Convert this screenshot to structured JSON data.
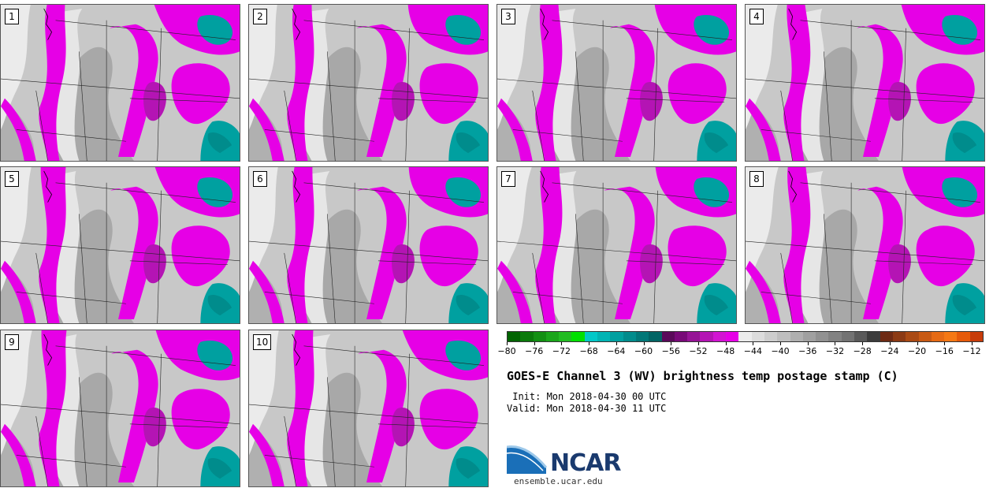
{
  "panels": [
    {
      "label": "1"
    },
    {
      "label": "2"
    },
    {
      "label": "3"
    },
    {
      "label": "4"
    },
    {
      "label": "5"
    },
    {
      "label": "6"
    },
    {
      "label": "7"
    },
    {
      "label": "8"
    },
    {
      "label": "9"
    },
    {
      "label": "10"
    }
  ],
  "colorbar": {
    "colors": [
      "#006400",
      "#0a7a0a",
      "#129012",
      "#1aa61a",
      "#22bc22",
      "#00e000",
      "#00c8c8",
      "#00b4b4",
      "#00a0a0",
      "#008c8c",
      "#007878",
      "#006464",
      "#5a0a5a",
      "#780a78",
      "#961496",
      "#b414b4",
      "#d214d2",
      "#e600e6",
      "#ebebeb",
      "#dcdcdc",
      "#cdcdcd",
      "#bebebe",
      "#afafaf",
      "#a0a0a0",
      "#919191",
      "#828282",
      "#737373",
      "#5a5a5a",
      "#3c3c3c",
      "#6e2a14",
      "#8c3a14",
      "#aa4a14",
      "#c85a14",
      "#e66a14",
      "#f57814",
      "#e65a0a",
      "#c83c0a"
    ],
    "ticks": [
      "−80",
      "−76",
      "−72",
      "−68",
      "−64",
      "−60",
      "−56",
      "−52",
      "−48",
      "−44",
      "−40",
      "−36",
      "−32",
      "−28",
      "−24",
      "−20",
      "−16",
      "−12"
    ]
  },
  "title": "GOES-E Channel 3 (WV) brightness temp postage stamp (C)",
  "init": " Init: Mon 2018-04-30 00 UTC",
  "valid": "Valid: Mon 2018-04-30 11 UTC",
  "logo": {
    "text": "NCAR",
    "url": "ensemble.ucar.edu"
  }
}
